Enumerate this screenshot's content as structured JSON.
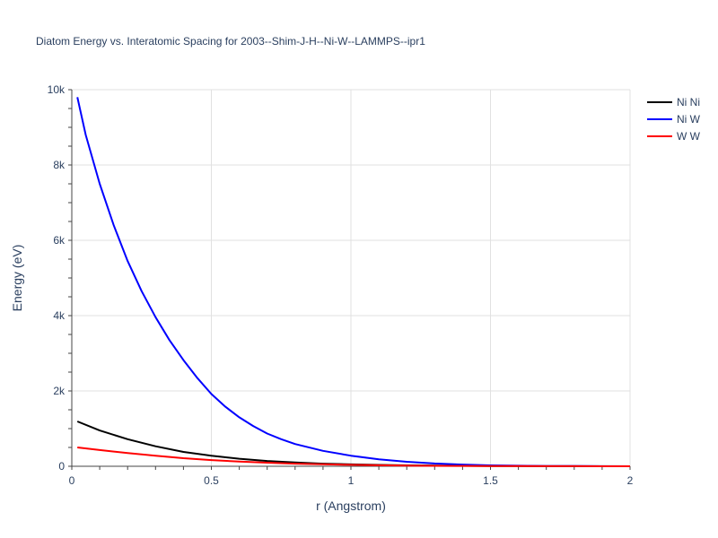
{
  "chart_data": {
    "type": "line",
    "title": "Diatom Energy vs. Interatomic Spacing for 2003--Shim-J-H--Ni-W--LAMMPS--ipr1",
    "xlabel": "r (Angstrom)",
    "ylabel": "Energy (eV)",
    "xlim": [
      0,
      2
    ],
    "ylim": [
      0,
      10000
    ],
    "x_ticks": [
      0,
      0.5,
      1,
      1.5,
      2
    ],
    "x_tick_labels": [
      "0",
      "0.5",
      "1",
      "1.5",
      "2"
    ],
    "y_ticks": [
      0,
      2000,
      4000,
      6000,
      8000,
      10000
    ],
    "y_tick_labels": [
      "0",
      "2k",
      "4k",
      "6k",
      "8k",
      "10k"
    ],
    "grid": true,
    "legend_position": "top-right",
    "series": [
      {
        "name": "Ni Ni",
        "color": "#000000",
        "points": [
          [
            0.02,
            1190
          ],
          [
            0.1,
            950
          ],
          [
            0.2,
            720
          ],
          [
            0.3,
            530
          ],
          [
            0.4,
            380
          ],
          [
            0.5,
            280
          ],
          [
            0.6,
            200
          ],
          [
            0.7,
            140
          ],
          [
            0.8,
            100
          ],
          [
            0.9,
            70
          ],
          [
            1.0,
            50
          ],
          [
            1.1,
            35
          ],
          [
            1.2,
            25
          ],
          [
            1.3,
            18
          ],
          [
            1.4,
            12
          ],
          [
            1.5,
            8
          ],
          [
            1.6,
            5
          ],
          [
            1.7,
            3
          ],
          [
            1.8,
            2
          ],
          [
            1.9,
            1
          ],
          [
            2.0,
            0
          ]
        ]
      },
      {
        "name": "Ni W",
        "color": "#0000ff",
        "points": [
          [
            0.02,
            9800
          ],
          [
            0.05,
            8800
          ],
          [
            0.1,
            7500
          ],
          [
            0.15,
            6400
          ],
          [
            0.2,
            5450
          ],
          [
            0.25,
            4650
          ],
          [
            0.3,
            3960
          ],
          [
            0.35,
            3350
          ],
          [
            0.4,
            2820
          ],
          [
            0.45,
            2340
          ],
          [
            0.5,
            1920
          ],
          [
            0.55,
            1580
          ],
          [
            0.6,
            1300
          ],
          [
            0.65,
            1070
          ],
          [
            0.7,
            870
          ],
          [
            0.75,
            720
          ],
          [
            0.8,
            590
          ],
          [
            0.9,
            410
          ],
          [
            1.0,
            280
          ],
          [
            1.1,
            185
          ],
          [
            1.2,
            120
          ],
          [
            1.3,
            75
          ],
          [
            1.4,
            45
          ],
          [
            1.5,
            25
          ],
          [
            1.6,
            14
          ],
          [
            1.7,
            8
          ],
          [
            1.8,
            4
          ],
          [
            1.9,
            2
          ],
          [
            2.0,
            0
          ]
        ]
      },
      {
        "name": "W W",
        "color": "#ff0000",
        "points": [
          [
            0.02,
            500
          ],
          [
            0.1,
            430
          ],
          [
            0.2,
            350
          ],
          [
            0.3,
            280
          ],
          [
            0.4,
            215
          ],
          [
            0.5,
            165
          ],
          [
            0.6,
            125
          ],
          [
            0.7,
            95
          ],
          [
            0.8,
            70
          ],
          [
            0.9,
            52
          ],
          [
            1.0,
            38
          ],
          [
            1.1,
            27
          ],
          [
            1.2,
            19
          ],
          [
            1.3,
            13
          ],
          [
            1.4,
            9
          ],
          [
            1.5,
            6
          ],
          [
            1.6,
            4
          ],
          [
            1.7,
            3
          ],
          [
            1.8,
            2
          ],
          [
            1.9,
            1
          ],
          [
            2.0,
            0
          ]
        ]
      }
    ]
  }
}
